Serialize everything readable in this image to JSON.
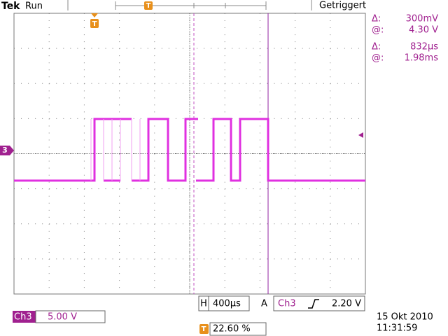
{
  "header": {
    "brand": "Tek",
    "status": "Run",
    "trigger_state": "Getriggert"
  },
  "cursor_readouts": [
    {
      "delta_label": "Δ:",
      "delta": "300mV",
      "at_label": "@:",
      "at": "4.30 V"
    },
    {
      "delta_label": "Δ:",
      "delta": "832µs",
      "at_label": "@:",
      "at": "1.98ms"
    }
  ],
  "channel_marker": "3",
  "timebase": {
    "label": "H",
    "value": "400µs"
  },
  "trigger": {
    "label": "A",
    "source": "Ch3",
    "level": "2.20 V"
  },
  "channel": {
    "name": "Ch3",
    "scale": "5.00 V"
  },
  "trigger_position": "22.60 %",
  "date": "15 Okt 2010",
  "time": "11:31:59"
}
